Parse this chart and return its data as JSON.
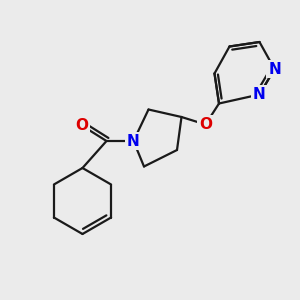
{
  "bg_color": "#ebebeb",
  "bond_color": "#1a1a1a",
  "bond_width": 1.6,
  "atom_colors": {
    "N": "#0000ee",
    "O": "#dd0000",
    "C": "#1a1a1a"
  },
  "font_size_atom": 10.5,
  "fig_width": 3.0,
  "fig_height": 3.0,
  "dpi": 100
}
